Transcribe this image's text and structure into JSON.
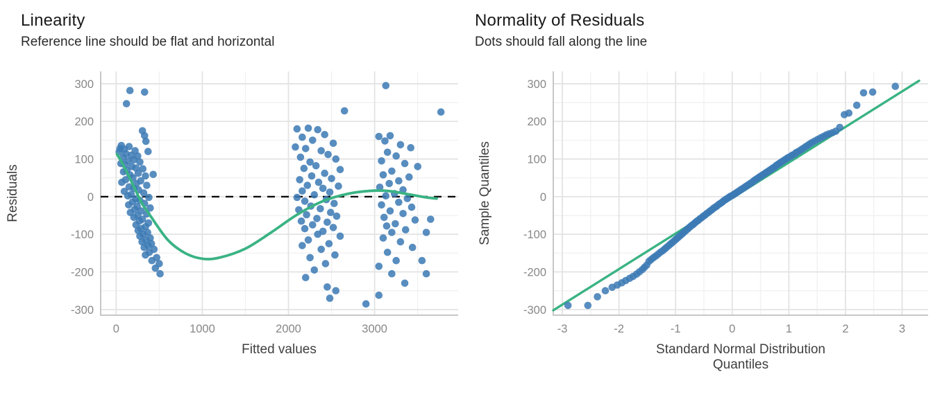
{
  "colors": {
    "dot": "#3d7ab5",
    "trend_green": "#3ab384",
    "dashed_reference": "#0a0a0a",
    "grid_major": "#e3e3e3",
    "grid_minor": "#f1f1f1",
    "axis_line": "#c7c7c7",
    "tick_label": "#878787",
    "axis_title": "#3f3f3f",
    "title_text": "#191919"
  },
  "chart_data": [
    {
      "type": "scatter",
      "title": "Linearity",
      "subtitle": "Reference line should be flat and horizontal",
      "xlabel": "Fitted values",
      "ylabel": "Residuals",
      "xticks": [
        0,
        1000,
        2000,
        3000
      ],
      "yticks": [
        -300,
        -200,
        -100,
        0,
        100,
        200,
        300
      ],
      "xminor": [
        500,
        1500,
        2500,
        3500
      ],
      "yminor": [
        -250,
        -150,
        -50,
        50,
        150,
        250
      ],
      "xlim": [
        -180,
        3970
      ],
      "ylim": [
        -315,
        333
      ],
      "hline": 0,
      "legend": "none",
      "grid": true,
      "points": [
        [
          160,
          282
        ],
        [
          330,
          278
        ],
        [
          120,
          247
        ],
        [
          305,
          175
        ],
        [
          330,
          162
        ],
        [
          345,
          147
        ],
        [
          60,
          136
        ],
        [
          150,
          133
        ],
        [
          45,
          128
        ],
        [
          95,
          126
        ],
        [
          220,
          122
        ],
        [
          35,
          119
        ],
        [
          115,
          114
        ],
        [
          175,
          110
        ],
        [
          250,
          108
        ],
        [
          80,
          104
        ],
        [
          205,
          98
        ],
        [
          140,
          95
        ],
        [
          275,
          92
        ],
        [
          55,
          88
        ],
        [
          100,
          85
        ],
        [
          180,
          80
        ],
        [
          230,
          76
        ],
        [
          310,
          74
        ],
        [
          125,
          70
        ],
        [
          85,
          66
        ],
        [
          255,
          62
        ],
        [
          160,
          58
        ],
        [
          340,
          55
        ],
        [
          195,
          50
        ],
        [
          110,
          45
        ],
        [
          285,
          42
        ],
        [
          65,
          38
        ],
        [
          235,
          35
        ],
        [
          355,
          30
        ],
        [
          150,
          26
        ],
        [
          205,
          22
        ],
        [
          260,
          18
        ],
        [
          95,
          14
        ],
        [
          320,
          10
        ],
        [
          175,
          6
        ],
        [
          135,
          2
        ],
        [
          380,
          -2
        ],
        [
          230,
          -6
        ],
        [
          275,
          -10
        ],
        [
          190,
          -14
        ],
        [
          330,
          -18
        ],
        [
          145,
          -22
        ],
        [
          245,
          -26
        ],
        [
          395,
          -30
        ],
        [
          215,
          -34
        ],
        [
          290,
          -38
        ],
        [
          165,
          -42
        ],
        [
          355,
          -46
        ],
        [
          250,
          -50
        ],
        [
          205,
          -55
        ],
        [
          305,
          -60
        ],
        [
          270,
          -65
        ],
        [
          375,
          -70
        ],
        [
          230,
          -75
        ],
        [
          340,
          -80
        ],
        [
          290,
          -85
        ],
        [
          255,
          -90
        ],
        [
          365,
          -95
        ],
        [
          315,
          -100
        ],
        [
          275,
          -105
        ],
        [
          395,
          -110
        ],
        [
          345,
          -115
        ],
        [
          300,
          -120
        ],
        [
          410,
          -125
        ],
        [
          370,
          -130
        ],
        [
          325,
          -135
        ],
        [
          440,
          -140
        ],
        [
          385,
          -148
        ],
        [
          340,
          -155
        ],
        [
          470,
          -162
        ],
        [
          415,
          -170
        ],
        [
          500,
          -178
        ],
        [
          455,
          -190
        ],
        [
          510,
          -205
        ],
        [
          430,
          59
        ],
        [
          370,
          120
        ],
        [
          3130,
          295
        ],
        [
          2650,
          228
        ],
        [
          3770,
          225
        ],
        [
          2100,
          180
        ],
        [
          2230,
          182
        ],
        [
          2340,
          178
        ],
        [
          2420,
          165
        ],
        [
          2160,
          158
        ],
        [
          3050,
          160
        ],
        [
          3180,
          162
        ],
        [
          3120,
          148
        ],
        [
          2280,
          150
        ],
        [
          2520,
          142
        ],
        [
          3300,
          138
        ],
        [
          2080,
          132
        ],
        [
          2200,
          128
        ],
        [
          3420,
          130
        ],
        [
          2380,
          122
        ],
        [
          3150,
          118
        ],
        [
          2460,
          112
        ],
        [
          3250,
          108
        ],
        [
          2140,
          105
        ],
        [
          2550,
          100
        ],
        [
          3080,
          95
        ],
        [
          2250,
          92
        ],
        [
          3350,
          88
        ],
        [
          2320,
          82
        ],
        [
          3500,
          80
        ],
        [
          2180,
          75
        ],
        [
          2600,
          72
        ],
        [
          3200,
          68
        ],
        [
          2420,
          62
        ],
        [
          3100,
          58
        ],
        [
          2270,
          55
        ],
        [
          3400,
          52
        ],
        [
          2500,
          48
        ],
        [
          2130,
          45
        ],
        [
          3280,
          42
        ],
        [
          2350,
          38
        ],
        [
          3170,
          35
        ],
        [
          2220,
          30
        ],
        [
          2580,
          28
        ],
        [
          3060,
          25
        ],
        [
          2400,
          22
        ],
        [
          3330,
          18
        ],
        [
          2160,
          15
        ],
        [
          2480,
          12
        ],
        [
          3230,
          8
        ],
        [
          2300,
          5
        ],
        [
          3130,
          2
        ],
        [
          2100,
          -2
        ],
        [
          3380,
          -5
        ],
        [
          2440,
          -8
        ],
        [
          2190,
          -12
        ],
        [
          3280,
          -15
        ],
        [
          2530,
          -18
        ],
        [
          3080,
          -22
        ],
        [
          2260,
          -25
        ],
        [
          3430,
          -28
        ],
        [
          2370,
          -32
        ],
        [
          2120,
          -35
        ],
        [
          3180,
          -38
        ],
        [
          2490,
          -42
        ],
        [
          3330,
          -45
        ],
        [
          2210,
          -48
        ],
        [
          2560,
          -52
        ],
        [
          3110,
          -55
        ],
        [
          2330,
          -58
        ],
        [
          3470,
          -62
        ],
        [
          2150,
          -65
        ],
        [
          2450,
          -68
        ],
        [
          3240,
          -72
        ],
        [
          2280,
          -75
        ],
        [
          3140,
          -78
        ],
        [
          2520,
          -82
        ],
        [
          2190,
          -85
        ],
        [
          3360,
          -88
        ],
        [
          2400,
          -92
        ],
        [
          3200,
          -95
        ],
        [
          2340,
          -100
        ],
        [
          2600,
          -105
        ],
        [
          3100,
          -110
        ],
        [
          2230,
          -115
        ],
        [
          3300,
          -120
        ],
        [
          2470,
          -125
        ],
        [
          2160,
          -130
        ],
        [
          3440,
          -135
        ],
        [
          2380,
          -140
        ],
        [
          3150,
          -148
        ],
        [
          2540,
          -155
        ],
        [
          2250,
          -162
        ],
        [
          3250,
          -170
        ],
        [
          2430,
          -178
        ],
        [
          3600,
          -95
        ],
        [
          3650,
          -60
        ],
        [
          3550,
          -170
        ],
        [
          3050,
          -185
        ],
        [
          2300,
          -195
        ],
        [
          3200,
          -205
        ],
        [
          2200,
          -215
        ],
        [
          2450,
          -240
        ],
        [
          2550,
          -250
        ],
        [
          3050,
          -262
        ],
        [
          2480,
          -270
        ],
        [
          2900,
          -285
        ],
        [
          3350,
          -230
        ],
        [
          3600,
          -205
        ]
      ],
      "trend_curve": [
        [
          10,
          113
        ],
        [
          80,
          85
        ],
        [
          160,
          48
        ],
        [
          240,
          10
        ],
        [
          300,
          -18
        ],
        [
          400,
          -52
        ],
        [
          600,
          -115
        ],
        [
          800,
          -150
        ],
        [
          1000,
          -165
        ],
        [
          1200,
          -162
        ],
        [
          1500,
          -138
        ],
        [
          1800,
          -95
        ],
        [
          2100,
          -48
        ],
        [
          2400,
          -12
        ],
        [
          2700,
          8
        ],
        [
          3000,
          16
        ],
        [
          3200,
          14
        ],
        [
          3400,
          6
        ],
        [
          3600,
          -2
        ],
        [
          3720,
          -5
        ]
      ]
    },
    {
      "type": "scatter",
      "title": "Normality of Residuals",
      "subtitle": "Dots should fall along the line",
      "xlabel": "Standard Normal Distribution Quantiles",
      "ylabel": "Sample Quantiles",
      "xticks": [
        -3,
        -2,
        -1,
        0,
        1,
        2,
        3
      ],
      "yticks": [
        -300,
        -200,
        -100,
        0,
        100,
        200,
        300
      ],
      "xminor": [
        -2.5,
        -1.5,
        -0.5,
        0.5,
        1.5,
        2.5
      ],
      "yminor": [
        -250,
        -150,
        -50,
        50,
        150,
        250
      ],
      "xlim": [
        -3.16,
        3.46
      ],
      "ylim": [
        -315,
        333
      ],
      "legend": "none",
      "grid": true,
      "reference_line": [
        [
          -3.16,
          -302
        ],
        [
          3.3,
          308
        ]
      ],
      "points": [
        [
          -2.9,
          -289
        ],
        [
          -2.55,
          -289
        ],
        [
          -2.38,
          -266
        ],
        [
          -2.24,
          -250
        ],
        [
          -2.12,
          -241
        ],
        [
          -2.03,
          -235
        ],
        [
          -1.95,
          -229
        ],
        [
          -1.88,
          -223
        ],
        [
          -1.81,
          -217
        ],
        [
          -1.75,
          -212
        ],
        [
          -1.69,
          -206
        ],
        [
          -1.64,
          -200
        ],
        [
          -1.59,
          -194
        ],
        [
          -1.55,
          -188
        ],
        [
          -1.51,
          -182
        ],
        [
          -1.47,
          -172
        ],
        [
          -1.43,
          -167
        ],
        [
          -1.39,
          -162
        ],
        [
          -1.35,
          -158
        ],
        [
          -1.31,
          -153
        ],
        [
          -1.27,
          -148
        ],
        [
          -1.23,
          -144
        ],
        [
          -1.19,
          -139
        ],
        [
          -1.16,
          -135
        ],
        [
          -1.12,
          -130
        ],
        [
          -1.09,
          -126
        ],
        [
          -1.06,
          -122
        ],
        [
          -1.02,
          -117
        ],
        [
          -0.99,
          -113
        ],
        [
          -0.96,
          -109
        ],
        [
          -0.93,
          -105
        ],
        [
          -0.9,
          -101
        ],
        [
          -0.87,
          -97
        ],
        [
          -0.84,
          -93
        ],
        [
          -0.81,
          -89
        ],
        [
          -0.78,
          -85
        ],
        [
          -0.75,
          -81
        ],
        [
          -0.72,
          -77
        ],
        [
          -0.69,
          -74
        ],
        [
          -0.66,
          -70
        ],
        [
          -0.63,
          -66
        ],
        [
          -0.6,
          -63
        ],
        [
          -0.57,
          -59
        ],
        [
          -0.54,
          -56
        ],
        [
          -0.51,
          -52
        ],
        [
          -0.48,
          -49
        ],
        [
          -0.45,
          -45
        ],
        [
          -0.42,
          -42
        ],
        [
          -0.39,
          -38
        ],
        [
          -0.36,
          -35
        ],
        [
          -0.33,
          -31
        ],
        [
          -0.3,
          -28
        ],
        [
          -0.27,
          -25
        ],
        [
          -0.24,
          -21
        ],
        [
          -0.21,
          -18
        ],
        [
          -0.18,
          -15
        ],
        [
          -0.15,
          -11
        ],
        [
          -0.12,
          -8
        ],
        [
          -0.09,
          -5
        ],
        [
          -0.06,
          -2
        ],
        [
          -0.03,
          1
        ],
        [
          0,
          3
        ],
        [
          0.03,
          6
        ],
        [
          0.06,
          9
        ],
        [
          0.09,
          12
        ],
        [
          0.12,
          15
        ],
        [
          0.15,
          18
        ],
        [
          0.18,
          21
        ],
        [
          0.21,
          24
        ],
        [
          0.24,
          27
        ],
        [
          0.27,
          30
        ],
        [
          0.3,
          33
        ],
        [
          0.33,
          36
        ],
        [
          0.36,
          39
        ],
        [
          0.39,
          43
        ],
        [
          0.42,
          46
        ],
        [
          0.45,
          49
        ],
        [
          0.48,
          52
        ],
        [
          0.51,
          55
        ],
        [
          0.54,
          58
        ],
        [
          0.57,
          61
        ],
        [
          0.6,
          64
        ],
        [
          0.63,
          67
        ],
        [
          0.66,
          70
        ],
        [
          0.69,
          73
        ],
        [
          0.72,
          76
        ],
        [
          0.75,
          79
        ],
        [
          0.78,
          83
        ],
        [
          0.81,
          86
        ],
        [
          0.84,
          89
        ],
        [
          0.87,
          92
        ],
        [
          0.9,
          95
        ],
        [
          0.93,
          98
        ],
        [
          0.96,
          101
        ],
        [
          0.99,
          104
        ],
        [
          1.03,
          107
        ],
        [
          1.06,
          110
        ],
        [
          1.1,
          113
        ],
        [
          1.13,
          117
        ],
        [
          1.17,
          120
        ],
        [
          1.21,
          124
        ],
        [
          1.25,
          128
        ],
        [
          1.29,
          132
        ],
        [
          1.33,
          136
        ],
        [
          1.37,
          140
        ],
        [
          1.41,
          144
        ],
        [
          1.46,
          148
        ],
        [
          1.51,
          152
        ],
        [
          1.56,
          156
        ],
        [
          1.61,
          160
        ],
        [
          1.66,
          164
        ],
        [
          1.71,
          167
        ],
        [
          1.77,
          170
        ],
        [
          1.83,
          174
        ],
        [
          1.9,
          184
        ],
        [
          1.98,
          218
        ],
        [
          2.06,
          222
        ],
        [
          2.2,
          243
        ],
        [
          2.32,
          276
        ],
        [
          2.48,
          278
        ],
        [
          2.88,
          293
        ]
      ]
    }
  ]
}
